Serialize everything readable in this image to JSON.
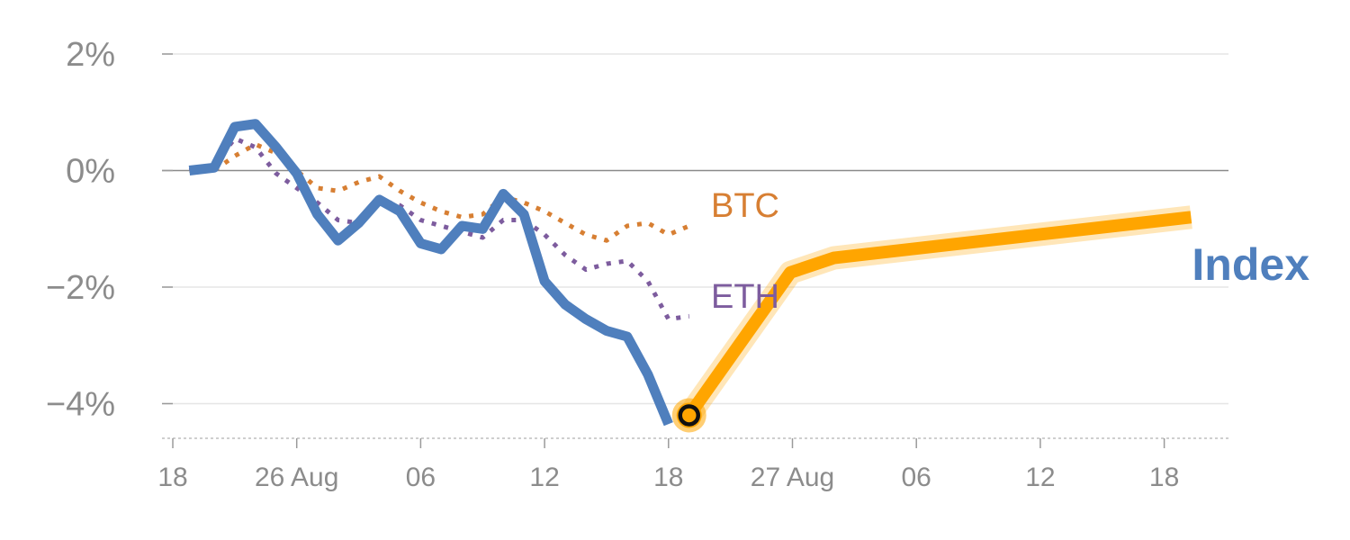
{
  "chart_data": {
    "type": "line",
    "title": "",
    "xlabel": "",
    "ylabel": "",
    "ylim": [
      -4.6,
      2.2
    ],
    "y_ticks": [
      {
        "value": 2,
        "label": "2%"
      },
      {
        "value": 0,
        "label": "0%"
      },
      {
        "value": -2,
        "label": "−2%"
      },
      {
        "value": -4,
        "label": "−4%"
      }
    ],
    "x_ticks": [
      {
        "x": 0,
        "label": "18"
      },
      {
        "x": 6,
        "label": "26 Aug"
      },
      {
        "x": 12,
        "label": "06"
      },
      {
        "x": 18,
        "label": "12"
      },
      {
        "x": 24,
        "label": "18"
      },
      {
        "x": 30,
        "label": "27 Aug"
      },
      {
        "x": 36,
        "label": "06"
      },
      {
        "x": 42,
        "label": "12"
      },
      {
        "x": 48,
        "label": "18"
      }
    ],
    "grid": true,
    "series": [
      {
        "name": "Index",
        "role": "actual",
        "color": "#4f7fbd",
        "style": "solid",
        "points": [
          [
            0.8,
            0
          ],
          [
            2,
            0.05
          ],
          [
            3,
            0.75
          ],
          [
            4,
            0.8
          ],
          [
            5,
            0.4
          ],
          [
            6,
            -0.05
          ],
          [
            7,
            -0.75
          ],
          [
            8,
            -1.2
          ],
          [
            9,
            -0.9
          ],
          [
            10,
            -0.5
          ],
          [
            11,
            -0.7
          ],
          [
            12,
            -1.25
          ],
          [
            13,
            -1.35
          ],
          [
            14,
            -0.95
          ],
          [
            15,
            -1.0
          ],
          [
            16,
            -0.4
          ],
          [
            17,
            -0.75
          ],
          [
            18,
            -1.9
          ],
          [
            19,
            -2.3
          ],
          [
            20,
            -2.55
          ],
          [
            21,
            -2.75
          ],
          [
            22,
            -2.85
          ],
          [
            23,
            -3.5
          ],
          [
            24,
            -4.35
          ]
        ]
      },
      {
        "name": "Index",
        "role": "forecast",
        "color": "#ffa500",
        "style": "solid",
        "points": [
          [
            25,
            -4.2
          ],
          [
            29.9,
            -1.75
          ],
          [
            32,
            -1.5
          ],
          [
            49.3,
            -0.8
          ]
        ]
      },
      {
        "name": "BTC",
        "color": "#d77f33",
        "style": "dotted",
        "points": [
          [
            0.8,
            0
          ],
          [
            2,
            0
          ],
          [
            3,
            0.25
          ],
          [
            4,
            0.45
          ],
          [
            5,
            0.3
          ],
          [
            6,
            0
          ],
          [
            7,
            -0.3
          ],
          [
            8,
            -0.35
          ],
          [
            9,
            -0.2
          ],
          [
            10,
            -0.1
          ],
          [
            11,
            -0.35
          ],
          [
            12,
            -0.55
          ],
          [
            13,
            -0.7
          ],
          [
            14,
            -0.8
          ],
          [
            15,
            -0.75
          ],
          [
            16,
            -0.45
          ],
          [
            17,
            -0.55
          ],
          [
            18,
            -0.7
          ],
          [
            19,
            -0.9
          ],
          [
            20,
            -1.1
          ],
          [
            21,
            -1.2
          ],
          [
            22,
            -0.95
          ],
          [
            23,
            -0.9
          ],
          [
            24,
            -1.1
          ],
          [
            25,
            -0.95
          ]
        ]
      },
      {
        "name": "ETH",
        "color": "#7d5c9e",
        "style": "dotted",
        "points": [
          [
            0.8,
            0
          ],
          [
            2,
            0.1
          ],
          [
            3,
            0.55
          ],
          [
            4,
            0.4
          ],
          [
            5,
            -0.05
          ],
          [
            6,
            -0.3
          ],
          [
            7,
            -0.55
          ],
          [
            8,
            -0.85
          ],
          [
            9,
            -0.9
          ],
          [
            10,
            -0.5
          ],
          [
            11,
            -0.6
          ],
          [
            12,
            -0.85
          ],
          [
            13,
            -0.95
          ],
          [
            14,
            -1.05
          ],
          [
            15,
            -1.15
          ],
          [
            16,
            -0.85
          ],
          [
            17,
            -0.85
          ],
          [
            18,
            -1.1
          ],
          [
            19,
            -1.45
          ],
          [
            20,
            -1.7
          ],
          [
            21,
            -1.6
          ],
          [
            22,
            -1.55
          ],
          [
            23,
            -1.9
          ],
          [
            24,
            -2.55
          ],
          [
            25,
            -2.5
          ]
        ]
      }
    ],
    "labels": [
      {
        "text": "BTC",
        "color": "#d77f33"
      },
      {
        "text": "ETH",
        "color": "#7d5c9e"
      },
      {
        "text": "Index",
        "color": "#4f7fbd"
      }
    ],
    "marker": {
      "x": 25,
      "y": -4.2,
      "fill": "#ffa500",
      "stroke": "#111111"
    }
  }
}
